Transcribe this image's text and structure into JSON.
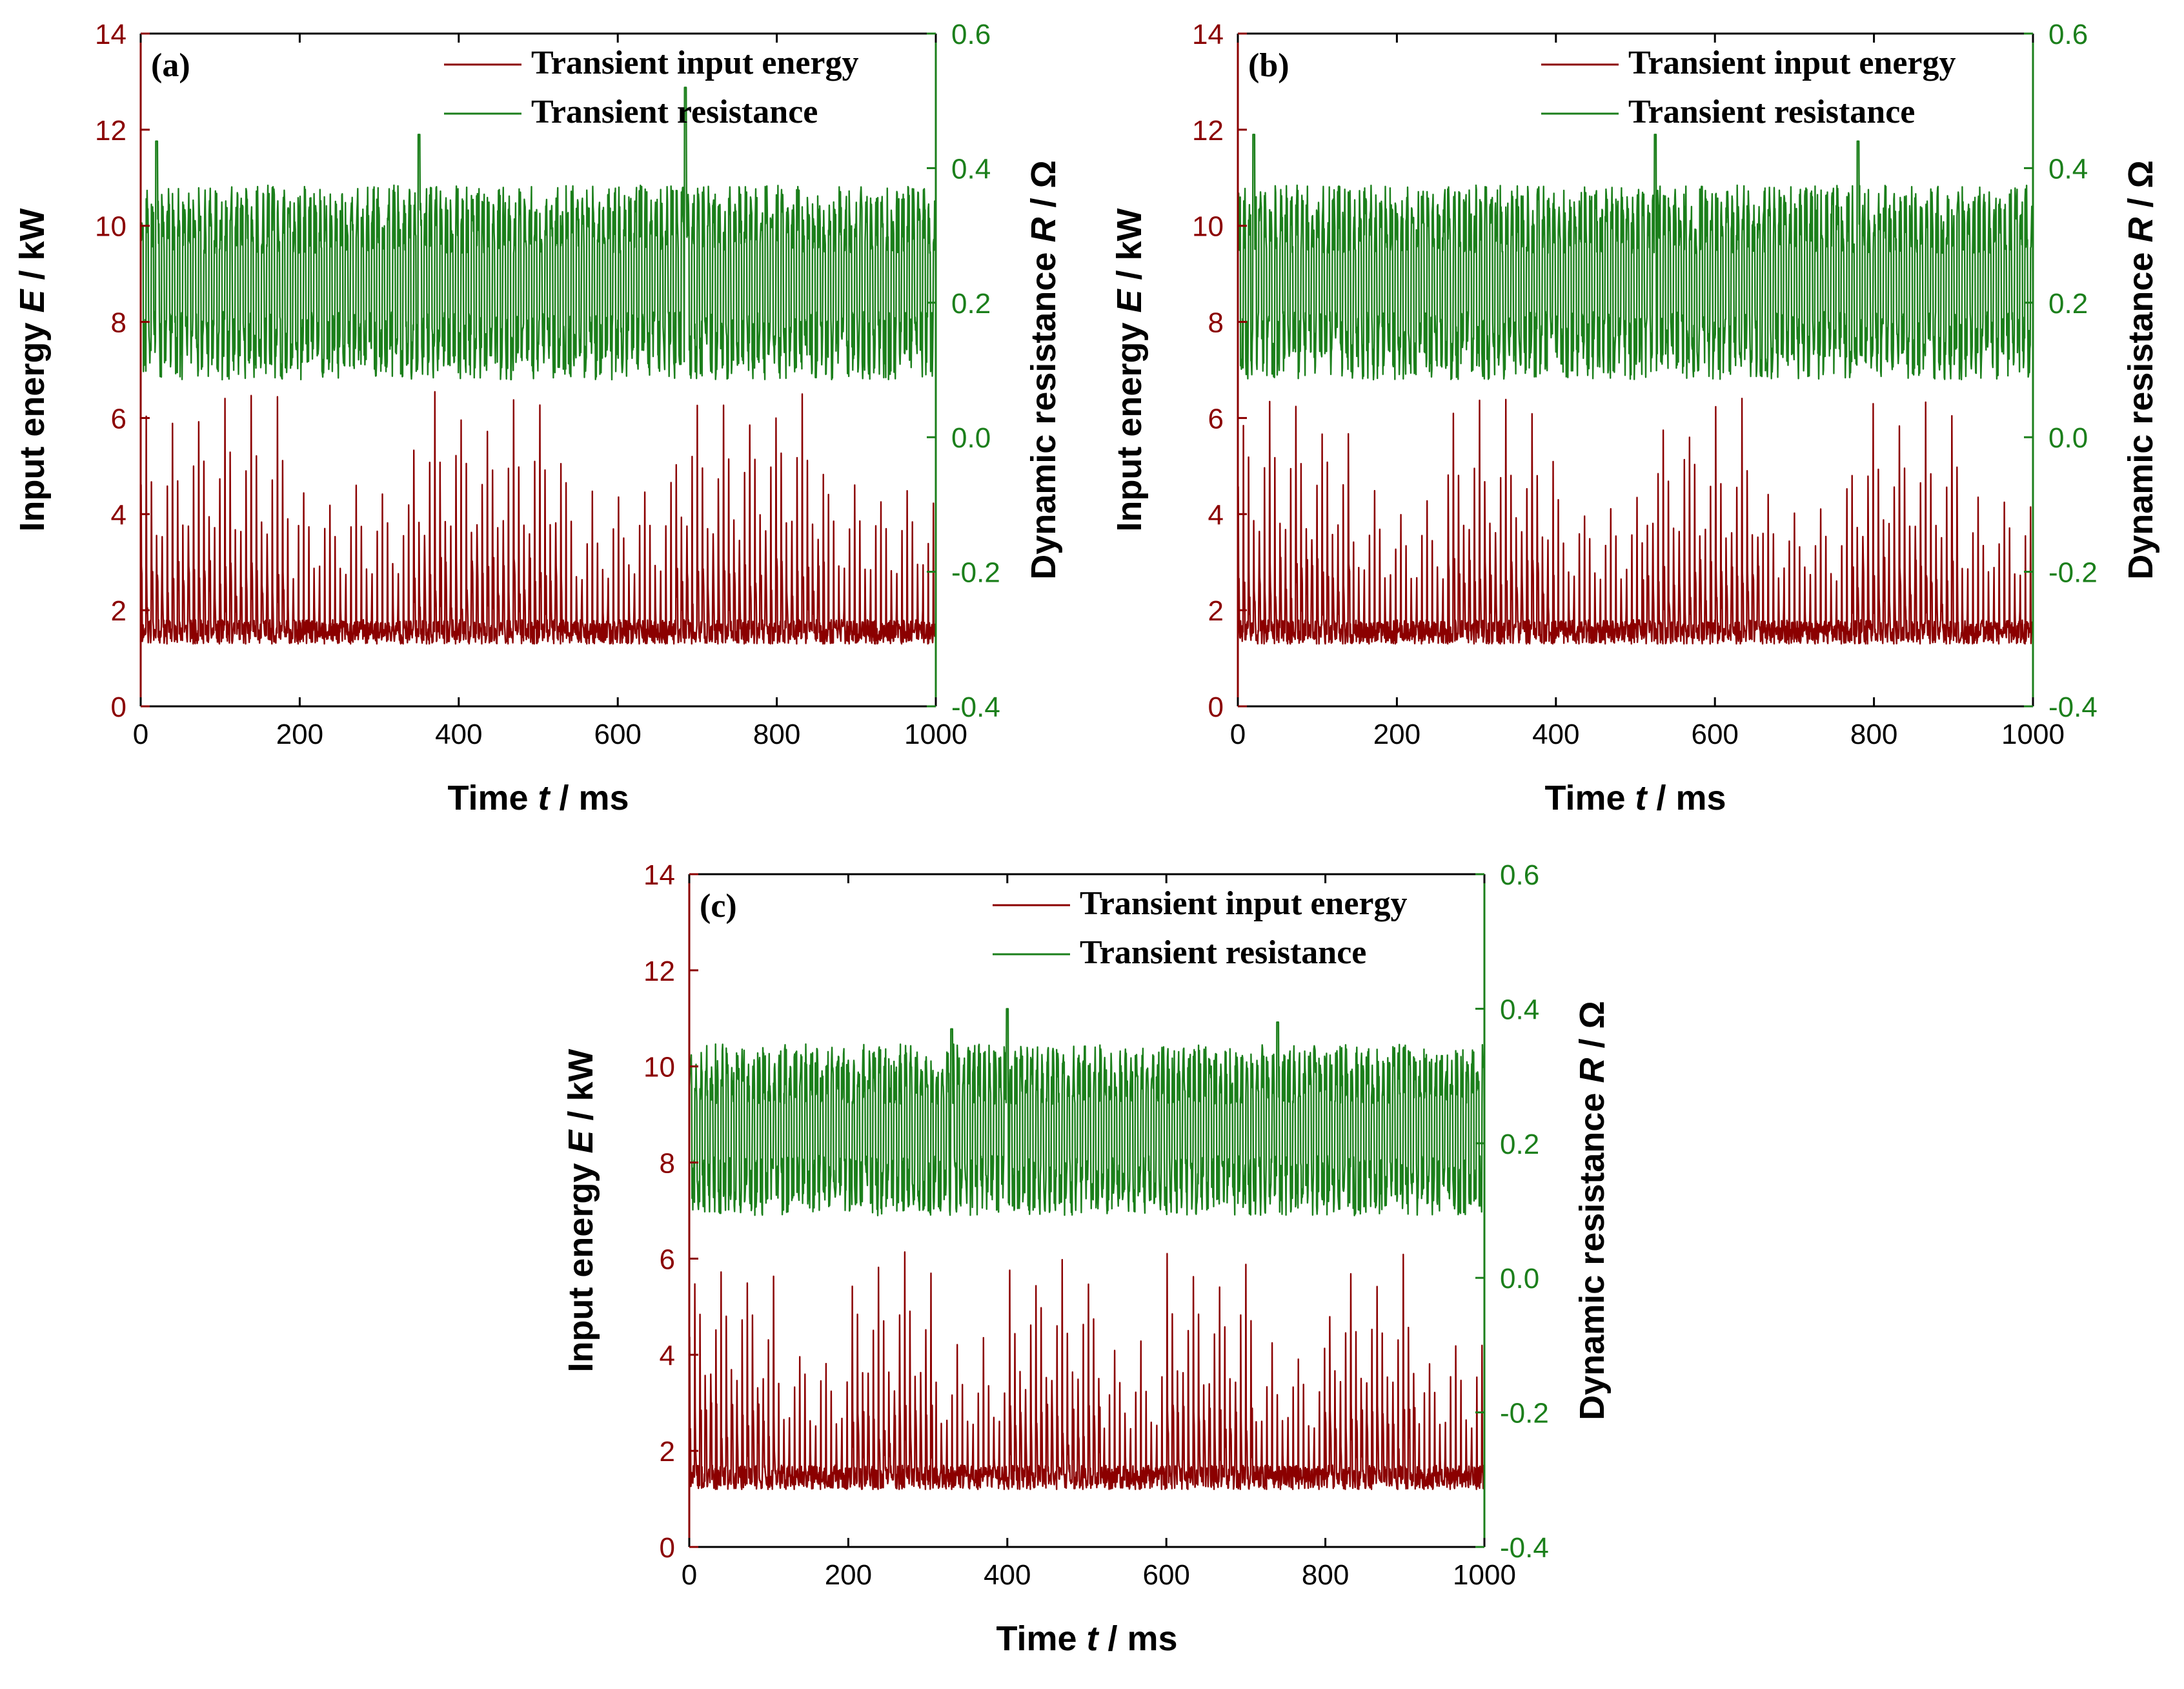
{
  "colors": {
    "energy": "#8b0000",
    "resistance": "#1b7f1b",
    "axis": "#000000"
  },
  "chart_data": [
    {
      "type": "line",
      "panel_label": "(a)",
      "xlabel_prefix": "Time ",
      "xlabel_var": "t",
      "xlabel_unit": " / ms",
      "ylabel_prefix": "Input energy ",
      "ylabel_var": "E",
      "ylabel_unit": " / kW",
      "y2label_prefix": "Dynamic resistance ",
      "y2label_var": "R",
      "y2label_unit": " / Ω",
      "xlim": [
        0,
        1000
      ],
      "ylim": [
        0,
        14
      ],
      "y2lim": [
        -0.4,
        0.6
      ],
      "xticks": [
        "0",
        "200",
        "400",
        "600",
        "800",
        "1000"
      ],
      "yticks": [
        "0",
        "2",
        "4",
        "6",
        "8",
        "10",
        "12",
        "14"
      ],
      "y2ticks": [
        "-0.4",
        "-0.2",
        "0.0",
        "0.2",
        "0.4",
        "0.6"
      ],
      "legend_position": "top-right",
      "series": [
        {
          "name": "Transient input energy",
          "axis": "left",
          "high_segments": [
            [
              0,
              185
            ],
            [
              340,
              530
            ],
            [
              670,
              860
            ]
          ],
          "high_peak": 6.5,
          "low_peak": 4.6,
          "baseline": 1.3,
          "seed": 11
        },
        {
          "name": "Transient resistance",
          "axis": "right",
          "mean": 0.23,
          "amplitude": 0.17,
          "spikes": [
            [
              20,
              0.44
            ],
            [
              350,
              0.45
            ],
            [
              685,
              0.52
            ]
          ],
          "seed": 21
        }
      ]
    },
    {
      "type": "line",
      "panel_label": "(b)",
      "xlabel_prefix": "Time ",
      "xlabel_var": "t",
      "xlabel_unit": " / ms",
      "ylabel_prefix": "Input energy ",
      "ylabel_var": "E",
      "ylabel_unit": " / kW",
      "y2label_prefix": "Dynamic resistance ",
      "y2label_var": "R",
      "y2label_unit": " / Ω",
      "xlim": [
        0,
        1000
      ],
      "ylim": [
        0,
        14
      ],
      "y2lim": [
        -0.4,
        0.6
      ],
      "xticks": [
        "0",
        "200",
        "400",
        "600",
        "800",
        "1000"
      ],
      "yticks": [
        "0",
        "2",
        "4",
        "6",
        "8",
        "10",
        "12",
        "14"
      ],
      "y2ticks": [
        "-0.4",
        "-0.2",
        "0.0",
        "0.2",
        "0.4",
        "0.6"
      ],
      "legend_position": "top-right",
      "series": [
        {
          "name": "Transient input energy",
          "axis": "left",
          "high_segments": [
            [
              0,
              145
            ],
            [
              260,
              400
            ],
            [
              510,
              655
            ],
            [
              770,
              905
            ]
          ],
          "high_peak": 6.4,
          "low_peak": 4.5,
          "baseline": 1.3,
          "seed": 12
        },
        {
          "name": "Transient resistance",
          "axis": "right",
          "mean": 0.23,
          "amplitude": 0.17,
          "spikes": [
            [
              20,
              0.45
            ],
            [
              525,
              0.45
            ],
            [
              780,
              0.44
            ]
          ],
          "seed": 22
        }
      ]
    },
    {
      "type": "line",
      "panel_label": "(c)",
      "xlabel_prefix": "Time ",
      "xlabel_var": "t",
      "xlabel_unit": " / ms",
      "ylabel_prefix": "Input energy ",
      "ylabel_var": "E",
      "ylabel_unit": " / kW",
      "y2label_prefix": "Dynamic resistance ",
      "y2label_var": "R",
      "y2label_unit": " / Ω",
      "xlim": [
        0,
        1000
      ],
      "ylim": [
        0,
        14
      ],
      "y2lim": [
        -0.4,
        0.6
      ],
      "xticks": [
        "0",
        "200",
        "400",
        "600",
        "800",
        "1000"
      ],
      "yticks": [
        "0",
        "2",
        "4",
        "6",
        "8",
        "10",
        "12",
        "14"
      ],
      "y2ticks": [
        "-0.4",
        "-0.2",
        "0.0",
        "0.2",
        "0.4",
        "0.6"
      ],
      "legend_position": "top-right",
      "series": [
        {
          "name": "Transient input energy",
          "axis": "left",
          "high_segments": [
            [
              0,
              110
            ],
            [
              205,
              310
            ],
            [
              400,
              520
            ],
            [
              600,
              710
            ],
            [
              800,
              915
            ]
          ],
          "high_peak": 6.1,
          "low_peak": 4.3,
          "baseline": 1.2,
          "seed": 13
        },
        {
          "name": "Transient resistance",
          "axis": "right",
          "mean": 0.22,
          "amplitude": 0.15,
          "spikes": [
            [
              400,
              0.4
            ],
            [
              740,
              0.38
            ],
            [
              330,
              0.37
            ]
          ],
          "seed": 23
        }
      ]
    }
  ]
}
